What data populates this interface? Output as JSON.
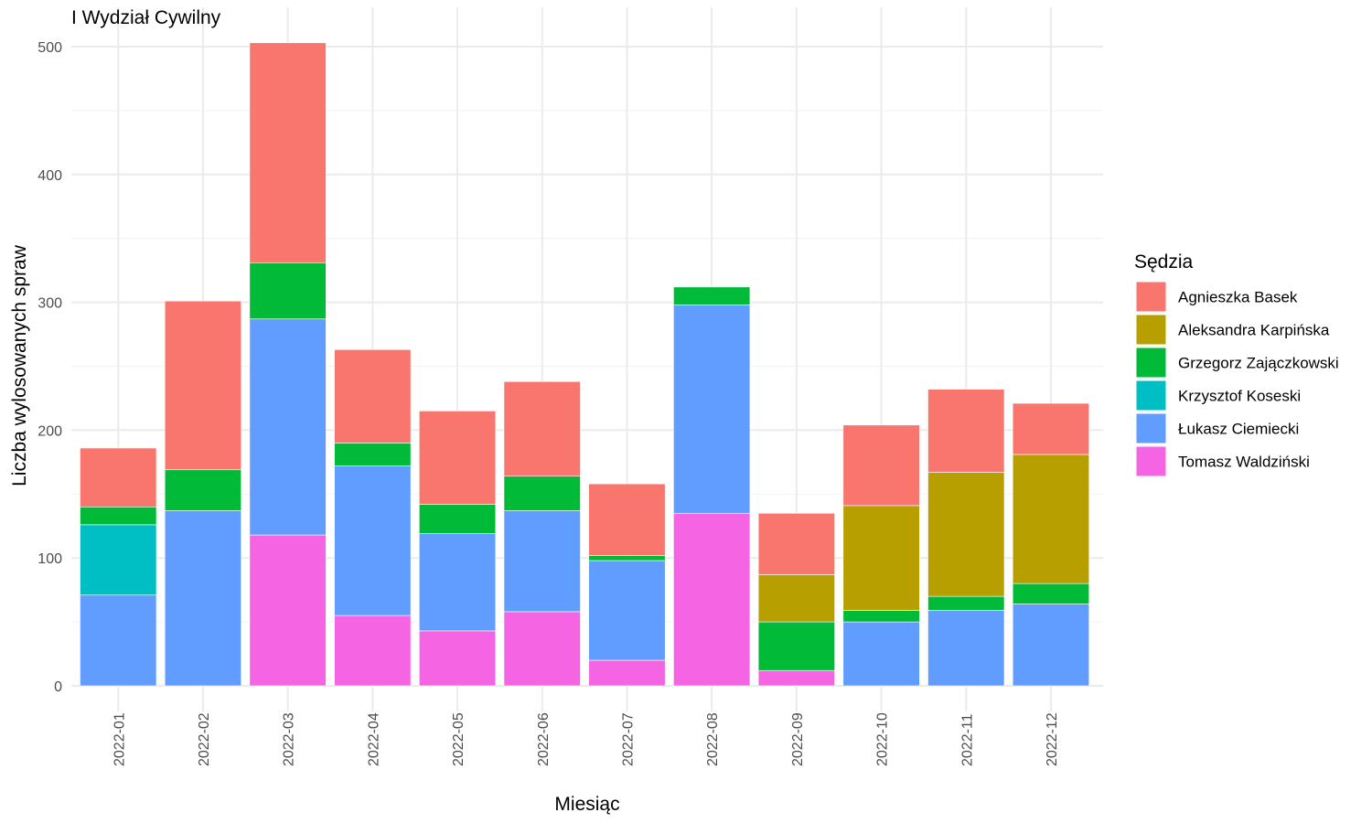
{
  "chart_data": {
    "type": "bar",
    "stacked": true,
    "title": "I Wydział Cywilny",
    "xlabel": "Miesiąc",
    "ylabel": "Liczba wylosowanych spraw",
    "ylim": [
      0,
      520
    ],
    "yticks": [
      0,
      100,
      200,
      300,
      400,
      500
    ],
    "grid": true,
    "legend_title": "Sędzia",
    "legend_position": "right",
    "categories": [
      "2022-01",
      "2022-02",
      "2022-03",
      "2022-04",
      "2022-05",
      "2022-06",
      "2022-07",
      "2022-08",
      "2022-09",
      "2022-10",
      "2022-11",
      "2022-12"
    ],
    "series": [
      {
        "name": "Tomasz Waldziński",
        "color": "#F564E3",
        "values": [
          0,
          0,
          118,
          55,
          43,
          58,
          20,
          135,
          12,
          0,
          0,
          0
        ]
      },
      {
        "name": "Łukasz Ciemiecki",
        "color": "#619CFF",
        "values": [
          71,
          137,
          169,
          117,
          76,
          79,
          78,
          163,
          0,
          50,
          59,
          64
        ]
      },
      {
        "name": "Krzysztof Koseski",
        "color": "#00BFC4",
        "values": [
          55,
          0,
          0,
          0,
          0,
          0,
          0,
          0,
          0,
          0,
          0,
          0
        ]
      },
      {
        "name": "Grzegorz Zajączkowski",
        "color": "#00BA38",
        "values": [
          14,
          32,
          44,
          18,
          23,
          27,
          4,
          14,
          38,
          9,
          11,
          16
        ]
      },
      {
        "name": "Aleksandra Karpińska",
        "color": "#B79F00",
        "values": [
          0,
          0,
          0,
          0,
          0,
          0,
          0,
          0,
          37,
          82,
          97,
          101
        ]
      },
      {
        "name": "Agnieszka Basek",
        "color": "#F8766D",
        "values": [
          46,
          132,
          172,
          73,
          73,
          74,
          56,
          0,
          48,
          63,
          65,
          40
        ]
      }
    ],
    "legend_order": [
      "Agnieszka Basek",
      "Aleksandra Karpińska",
      "Grzegorz Zajączkowski",
      "Krzysztof Koseski",
      "Łukasz Ciemiecki",
      "Tomasz Waldziński"
    ]
  }
}
